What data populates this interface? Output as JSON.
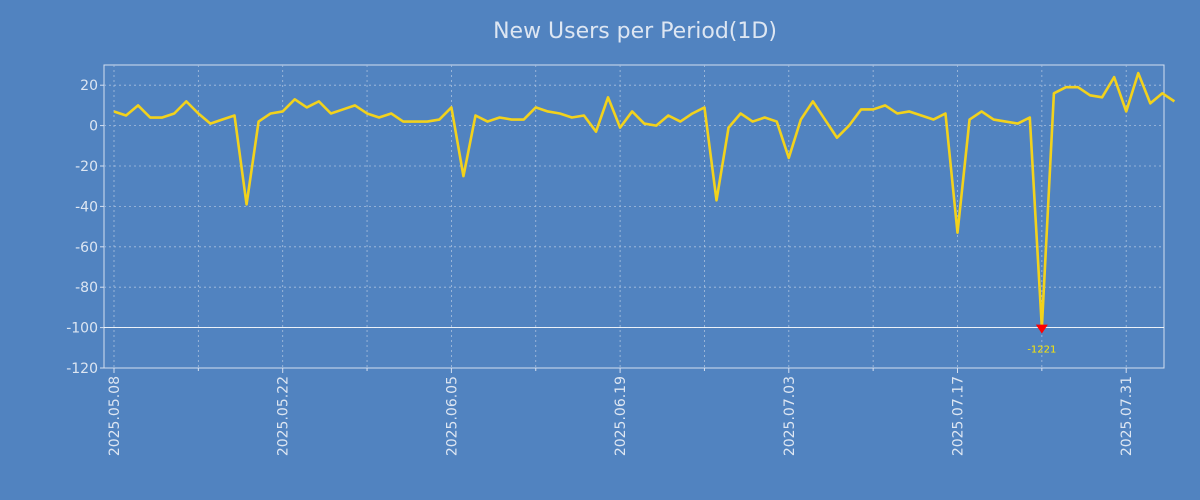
{
  "chart_data": {
    "type": "line",
    "title": "New Users per Period(1D)",
    "xlabel": "",
    "ylabel": "",
    "ylim": [
      -120,
      30
    ],
    "yticks": [
      20,
      0,
      -20,
      -40,
      -60,
      -80,
      -100,
      -120
    ],
    "x_tick_labels": [
      "2025.05.08",
      "2025.05.22",
      "2025.06.05",
      "2025.06.19",
      "2025.07.03",
      "2025.07.17",
      "2025.07.31"
    ],
    "x_tick_indices": [
      0,
      14,
      28,
      42,
      56,
      70,
      84
    ],
    "x_minor_tick_indices": [
      7,
      21,
      35,
      49,
      63,
      77
    ],
    "start_date": "2025.05.08",
    "x_count": 88,
    "series": [
      {
        "name": "New Users",
        "color": "#f2d21c",
        "values": [
          7,
          5,
          10,
          4,
          4,
          6,
          12,
          6,
          1,
          3,
          5,
          -39,
          2,
          6,
          7,
          13,
          9,
          12,
          6,
          8,
          10,
          6,
          4,
          6,
          2,
          2,
          2,
          3,
          9,
          -25,
          5,
          2,
          4,
          3,
          3,
          9,
          7,
          6,
          4,
          5,
          -3,
          14,
          -1,
          7,
          1,
          0,
          5,
          2,
          6,
          9,
          -37,
          -1,
          6,
          2,
          4,
          2,
          -16,
          3,
          12,
          3,
          -6,
          0,
          8,
          8,
          10,
          6,
          7,
          5,
          3,
          6,
          -53,
          3,
          7,
          3,
          2,
          1,
          4,
          -100,
          16,
          19,
          19,
          15,
          14,
          24,
          7,
          26,
          11,
          16,
          12
        ]
      }
    ],
    "clip_line": {
      "value": -100,
      "color": "#ffffff"
    },
    "annotations": [
      {
        "index": 77,
        "value": -100,
        "label": "-1221",
        "marker": "down-triangle",
        "marker_color": "#ff0000",
        "text_color": "#ffe800"
      }
    ],
    "grid": true,
    "legend": "none"
  }
}
